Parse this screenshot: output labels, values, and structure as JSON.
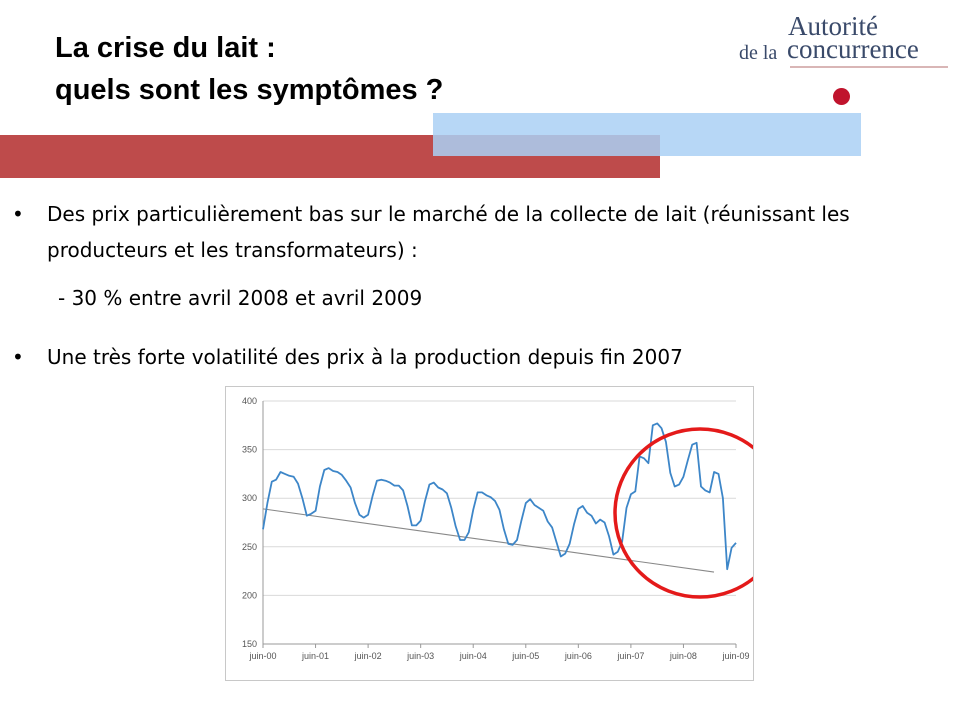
{
  "title": {
    "line1": "La crise du lait :",
    "line2": "quels sont les symptômes ?"
  },
  "logo": {
    "line1": "Autorité",
    "line2a": "de la",
    "line2b": "concurrence"
  },
  "bullets": [
    {
      "text": "Des prix particulièrement bas sur le marché de la collecte de lait (réunissant les producteurs et les transformateurs) :",
      "sub": "- 30 % entre avril 2008 et avril 2009"
    },
    {
      "text": "Une très forte volatilité des prix à la production depuis fin 2007"
    }
  ],
  "colors": {
    "red_band": "#be4b4b",
    "blue_band": "#aad0f5",
    "series": "#3d86c8",
    "trend": "#888888",
    "highlight_circle": "#e41a1a",
    "logo_dot": "#c0142d"
  },
  "chart_data": {
    "type": "line",
    "x_ticks": [
      "juin-00",
      "juin-01",
      "juin-02",
      "juin-03",
      "juin-04",
      "juin-05",
      "juin-06",
      "juin-07",
      "juin-08",
      "juin-09"
    ],
    "ylim": [
      150,
      400
    ],
    "y_ticks": [
      150,
      200,
      250,
      300,
      350,
      400
    ],
    "grid": true,
    "series": [
      {
        "values": [
          268,
          295,
          317,
          319,
          327,
          325,
          323,
          322,
          315,
          300,
          282,
          284,
          287,
          312,
          329,
          331,
          328,
          327,
          324,
          318,
          311,
          295,
          283,
          280,
          283,
          302,
          318,
          319,
          318,
          316,
          313,
          313,
          308,
          292,
          272,
          272,
          277,
          297,
          314,
          316,
          311,
          309,
          305,
          290,
          271,
          257,
          257,
          265,
          288,
          306,
          306,
          303,
          301,
          297,
          288,
          268,
          253,
          252,
          257,
          277,
          295,
          299,
          293,
          290,
          287,
          276,
          270,
          255,
          240,
          243,
          253,
          273,
          289,
          292,
          285,
          282,
          274,
          278,
          275,
          261,
          242,
          245,
          255,
          290,
          304,
          307,
          343,
          341,
          336,
          375,
          377,
          372,
          358,
          326,
          312,
          314,
          322,
          339,
          355,
          357,
          312,
          308,
          306,
          327,
          325,
          300,
          227,
          249,
          254
        ]
      },
      {
        "values": [
          289,
          224
        ]
      }
    ],
    "annotations": [
      "circle highlighting 2007–2009 volatility"
    ]
  }
}
